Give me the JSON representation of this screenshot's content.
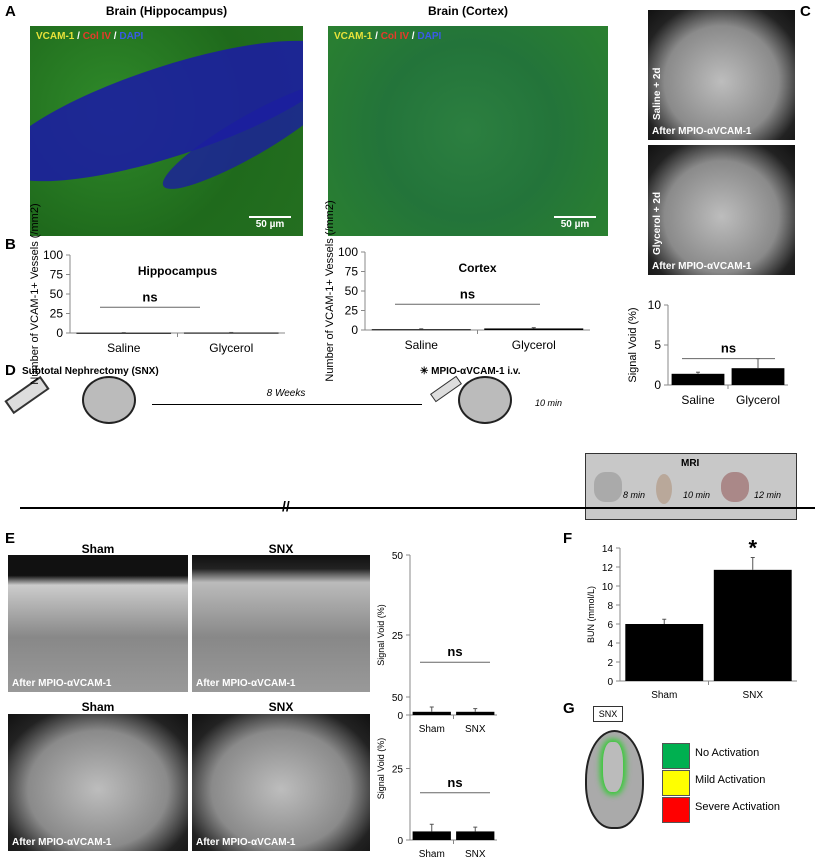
{
  "panel_labels": {
    "a": "A",
    "b": "B",
    "c": "C",
    "d": "D",
    "e": "E",
    "f": "F",
    "g": "G"
  },
  "panel_a": {
    "images": [
      {
        "title": "Brain (Hippocampus)",
        "stain": [
          "VCAM-1",
          "Col IV",
          "DAPI"
        ],
        "scale": "50 µm"
      },
      {
        "title": "Brain (Cortex)",
        "stain": [
          "VCAM-1",
          "Col IV",
          "DAPI"
        ],
        "scale": "50 µm"
      }
    ],
    "stain_colors": [
      "#e8e23a",
      "#e83a2a",
      "#3a5ae8"
    ],
    "separator": " / "
  },
  "panel_c_images": [
    {
      "side_label": "Saline + 2d",
      "caption": "After MPIO-αVCAM-1"
    },
    {
      "side_label": "Glycerol + 2d",
      "caption": "After MPIO-αVCAM-1"
    }
  ],
  "panel_d": {
    "surgery": "Subtotal Nephrectomy (SNX)",
    "interval": "8 Weeks",
    "injection": "MPIO-αVCAM-1 i.v.",
    "delay": "10 min",
    "mri_label": "MRI",
    "mri_intervals": [
      "8 min",
      "10 min",
      "12 min"
    ]
  },
  "panel_e_images": {
    "titles": [
      "Sham",
      "SNX",
      "Sham",
      "SNX"
    ],
    "caption": "After MPIO-αVCAM-1"
  },
  "panel_g": {
    "box_label": "SNX",
    "legend": [
      {
        "label": "No Activation",
        "color": "#00b050"
      },
      {
        "label": "Mild Activation",
        "color": "#ffff00"
      },
      {
        "label": "Severe Activation",
        "color": "#ff0000"
      }
    ]
  },
  "chart_data": [
    {
      "id": "b1",
      "type": "bar",
      "title": "Hippocampus",
      "categories": [
        "Saline",
        "Glycerol"
      ],
      "values": [
        0.3,
        0.5
      ],
      "errors": [
        0.2,
        0.2
      ],
      "ylabel": "Number of VCAM-1+ Vessels (/mm2)",
      "ylim": [
        0,
        100
      ],
      "yticks": [
        0,
        25,
        50,
        75,
        100
      ],
      "annotation": "ns"
    },
    {
      "id": "b2",
      "type": "bar",
      "title": "Cortex",
      "categories": [
        "Saline",
        "Glycerol"
      ],
      "values": [
        1,
        2
      ],
      "errors": [
        0.5,
        1
      ],
      "ylabel": "Number of VCAM-1+ Vessels (/mm2)",
      "ylim": [
        0,
        100
      ],
      "yticks": [
        0,
        25,
        50,
        75,
        100
      ],
      "annotation": "ns"
    },
    {
      "id": "c",
      "type": "bar",
      "title": "",
      "categories": [
        "Saline",
        "Glycerol"
      ],
      "values": [
        1.4,
        2.1
      ],
      "errors": [
        0.2,
        1.2
      ],
      "ylabel": "Signal Void (%)",
      "ylim": [
        0,
        10
      ],
      "yticks": [
        0,
        5,
        10
      ],
      "annotation": "ns"
    },
    {
      "id": "e1",
      "type": "bar",
      "title": "",
      "categories": [
        "Sham",
        "SNX"
      ],
      "values": [
        1,
        1
      ],
      "errors": [
        1.5,
        1
      ],
      "ylabel": "Signal Void (%)",
      "ylim": [
        0,
        50
      ],
      "yticks": [
        0,
        25,
        50
      ],
      "annotation": "ns"
    },
    {
      "id": "e2",
      "type": "bar",
      "title": "",
      "categories": [
        "Sham",
        "SNX"
      ],
      "values": [
        3,
        3
      ],
      "errors": [
        2.5,
        1.5
      ],
      "ylabel": "Signal Void (%)",
      "ylim": [
        0,
        50
      ],
      "yticks": [
        0,
        25,
        50
      ],
      "annotation": "ns"
    },
    {
      "id": "f",
      "type": "bar",
      "title": "",
      "categories": [
        "Sham",
        "SNX"
      ],
      "values": [
        6,
        11.7
      ],
      "errors": [
        0.5,
        1.3
      ],
      "ylabel": "BUN (mmol/L)",
      "ylim": [
        0,
        14
      ],
      "yticks": [
        0,
        2,
        4,
        6,
        8,
        10,
        12,
        14
      ],
      "annotation": "*"
    }
  ]
}
